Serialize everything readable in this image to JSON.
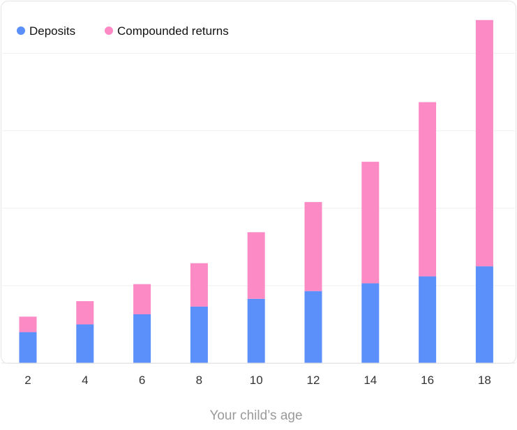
{
  "chart_data": {
    "type": "bar",
    "stacked": true,
    "title": "",
    "xlabel": "Your child’s age",
    "ylabel": "",
    "categories": [
      "2",
      "4",
      "6",
      "8",
      "10",
      "12",
      "14",
      "16",
      "18"
    ],
    "series": [
      {
        "name": "Deposits",
        "color": "#5B8FF9",
        "values": [
          4.0,
          5.0,
          6.3,
          7.3,
          8.3,
          9.3,
          10.3,
          11.2,
          12.5
        ]
      },
      {
        "name": "Compounded returns",
        "color": "#FB8AC5",
        "values": [
          2.0,
          3.0,
          3.9,
          5.6,
          8.6,
          11.5,
          15.7,
          22.5,
          31.8
        ]
      }
    ],
    "ylim": [
      0,
      45
    ],
    "grid": true,
    "legend": "top-left",
    "show_y_ticks": false
  }
}
